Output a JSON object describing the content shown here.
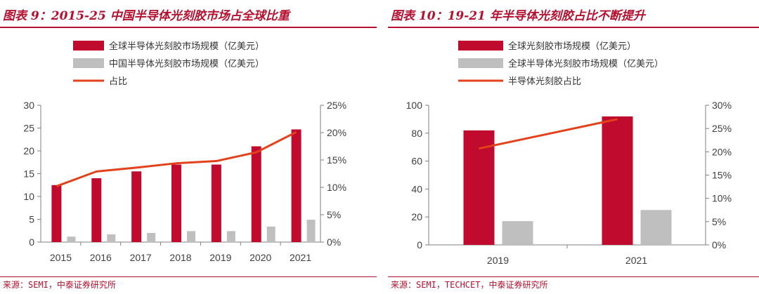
{
  "left": {
    "title": "图表 9：2015-25 中国半导体光刻胶市场占全球比重",
    "source": "来源：SEMI，中泰证券研究所"
  },
  "right": {
    "title": "图表 10：19-21 年半导体光刻胶占比不断提升",
    "source": "来源：SEMI，TECHCET，中泰证券研究所"
  },
  "colors": {
    "global": "#c00a2e",
    "china": "#bfbfbf",
    "share": "#e2421b",
    "accent": "#b4102f"
  },
  "chart_data": [
    {
      "type": "bar",
      "title": "2015-25 中国半导体光刻胶市场占全球比重",
      "categories": [
        "2015",
        "2016",
        "2017",
        "2018",
        "2019",
        "2020",
        "2021"
      ],
      "series": [
        {
          "name": "全球半导体光刻胶市场规模（亿美元）",
          "type": "bar",
          "axis": "left",
          "values": [
            12.5,
            14.0,
            15.5,
            17.0,
            17.0,
            21.0,
            24.7
          ]
        },
        {
          "name": "中国半导体光刻胶市场规模（亿美元）",
          "type": "bar",
          "axis": "left",
          "values": [
            1.2,
            1.7,
            2.0,
            2.4,
            2.4,
            3.4,
            4.9
          ]
        },
        {
          "name": "占比",
          "type": "line",
          "axis": "right",
          "values": [
            10.2,
            12.9,
            13.6,
            14.4,
            14.8,
            16.4,
            20.1
          ]
        }
      ],
      "y_left": {
        "min": 0,
        "max": 30,
        "ticks": [
          "0",
          "5",
          "10",
          "15",
          "20",
          "25",
          "30"
        ]
      },
      "y_right": {
        "min": 0,
        "max": 25,
        "ticks": [
          "0%",
          "5%",
          "10%",
          "15%",
          "20%",
          "25%"
        ]
      },
      "legend": "top-left"
    },
    {
      "type": "bar",
      "title": "19-21 年半导体光刻胶占比不断提升",
      "categories": [
        "2019",
        "2021"
      ],
      "series": [
        {
          "name": "全球光刻胶市场规模（亿美元）",
          "type": "bar",
          "axis": "left",
          "values": [
            82,
            92
          ]
        },
        {
          "name": "全球半导体光刻胶市场规模（亿美元）",
          "type": "bar",
          "axis": "left",
          "values": [
            17,
            25
          ]
        },
        {
          "name": "半导体光刻胶占比",
          "type": "line",
          "axis": "right",
          "values": [
            20.7,
            27.0
          ]
        }
      ],
      "y_left": {
        "min": 0,
        "max": 100,
        "ticks": [
          "0",
          "20",
          "40",
          "60",
          "80",
          "100"
        ]
      },
      "y_right": {
        "min": 0,
        "max": 30,
        "ticks": [
          "0%",
          "5%",
          "10%",
          "15%",
          "20%",
          "25%",
          "30%"
        ]
      },
      "legend": "top-left"
    }
  ]
}
